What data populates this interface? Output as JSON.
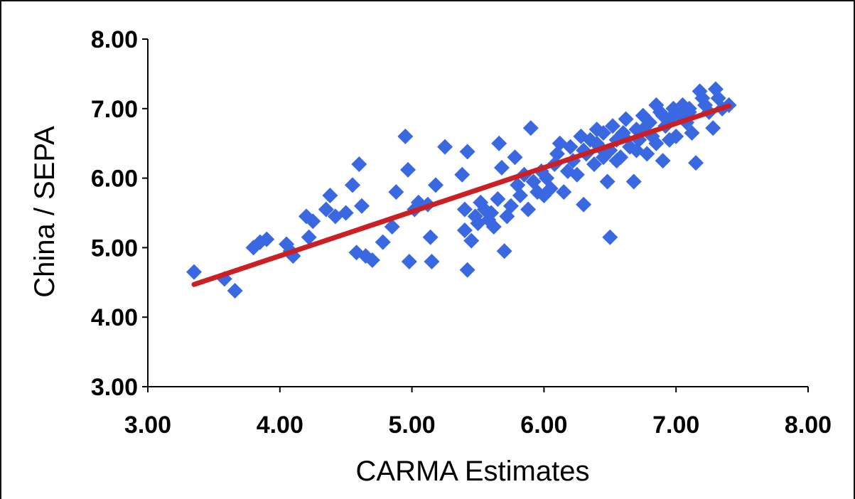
{
  "chart_data": {
    "type": "scatter",
    "title": "",
    "xlabel": "CARMA Estimates",
    "ylabel": "China / SEPA",
    "xlim": [
      3.0,
      8.0
    ],
    "ylim": [
      3.0,
      8.0
    ],
    "x_ticks": [
      "3.00",
      "4.00",
      "5.00",
      "6.00",
      "7.00",
      "8.00"
    ],
    "y_ticks": [
      "3.00",
      "4.00",
      "5.00",
      "6.00",
      "7.00",
      "8.00"
    ],
    "grid": false,
    "legend": "none",
    "colors": {
      "points": "#3a68e0",
      "trendline": "#cc1f24",
      "axis": "#000000"
    },
    "series": [
      {
        "type": "scatter",
        "points": [
          [
            3.35,
            4.65
          ],
          [
            3.58,
            4.55
          ],
          [
            3.66,
            4.38
          ],
          [
            3.8,
            5.0
          ],
          [
            3.85,
            5.08
          ],
          [
            3.9,
            5.12
          ],
          [
            4.05,
            5.05
          ],
          [
            4.08,
            4.95
          ],
          [
            4.1,
            4.88
          ],
          [
            4.2,
            5.45
          ],
          [
            4.22,
            5.15
          ],
          [
            4.25,
            5.38
          ],
          [
            4.35,
            5.55
          ],
          [
            4.38,
            5.75
          ],
          [
            4.42,
            5.45
          ],
          [
            4.5,
            5.5
          ],
          [
            4.55,
            5.9
          ],
          [
            4.58,
            4.93
          ],
          [
            4.6,
            6.2
          ],
          [
            4.62,
            5.6
          ],
          [
            4.65,
            4.88
          ],
          [
            4.7,
            4.82
          ],
          [
            4.78,
            5.08
          ],
          [
            4.85,
            5.3
          ],
          [
            4.88,
            5.8
          ],
          [
            4.95,
            6.6
          ],
          [
            4.97,
            6.12
          ],
          [
            4.98,
            4.8
          ],
          [
            5.02,
            5.55
          ],
          [
            5.05,
            5.65
          ],
          [
            5.12,
            5.62
          ],
          [
            5.14,
            5.15
          ],
          [
            5.15,
            4.8
          ],
          [
            5.18,
            5.9
          ],
          [
            5.25,
            6.45
          ],
          [
            5.38,
            6.05
          ],
          [
            5.4,
            5.55
          ],
          [
            5.4,
            5.25
          ],
          [
            5.42,
            4.68
          ],
          [
            5.42,
            6.38
          ],
          [
            5.45,
            5.1
          ],
          [
            5.48,
            5.45
          ],
          [
            5.5,
            5.35
          ],
          [
            5.52,
            5.65
          ],
          [
            5.55,
            5.55
          ],
          [
            5.58,
            5.4
          ],
          [
            5.6,
            5.5
          ],
          [
            5.62,
            5.3
          ],
          [
            5.65,
            5.7
          ],
          [
            5.66,
            6.5
          ],
          [
            5.68,
            6.15
          ],
          [
            5.7,
            4.95
          ],
          [
            5.72,
            5.45
          ],
          [
            5.75,
            5.6
          ],
          [
            5.78,
            6.3
          ],
          [
            5.8,
            5.9
          ],
          [
            5.82,
            5.75
          ],
          [
            5.85,
            6.05
          ],
          [
            5.88,
            5.55
          ],
          [
            5.9,
            6.72
          ],
          [
            5.92,
            5.95
          ],
          [
            5.95,
            5.8
          ],
          [
            5.98,
            6.1
          ],
          [
            6.0,
            5.75
          ],
          [
            6.02,
            6.0
          ],
          [
            6.05,
            5.85
          ],
          [
            6.08,
            6.2
          ],
          [
            6.1,
            6.35
          ],
          [
            6.12,
            6.5
          ],
          [
            6.15,
            5.8
          ],
          [
            6.18,
            6.1
          ],
          [
            6.2,
            6.45
          ],
          [
            6.22,
            6.25
          ],
          [
            6.25,
            6.05
          ],
          [
            6.28,
            6.6
          ],
          [
            6.3,
            5.62
          ],
          [
            6.32,
            6.35
          ],
          [
            6.35,
            6.55
          ],
          [
            6.38,
            6.2
          ],
          [
            6.4,
            6.7
          ],
          [
            6.42,
            6.45
          ],
          [
            6.45,
            6.65
          ],
          [
            6.48,
            5.95
          ],
          [
            6.5,
            5.15
          ],
          [
            6.5,
            6.4
          ],
          [
            6.52,
            6.75
          ],
          [
            6.55,
            6.55
          ],
          [
            6.58,
            6.3
          ],
          [
            6.6,
            6.65
          ],
          [
            6.62,
            6.85
          ],
          [
            6.65,
            6.45
          ],
          [
            6.68,
            5.95
          ],
          [
            6.7,
            6.7
          ],
          [
            6.72,
            6.55
          ],
          [
            6.75,
            6.9
          ],
          [
            6.78,
            6.35
          ],
          [
            6.8,
            6.8
          ],
          [
            6.82,
            6.6
          ],
          [
            6.85,
            7.05
          ],
          [
            6.88,
            6.95
          ],
          [
            6.9,
            6.25
          ],
          [
            6.92,
            6.75
          ],
          [
            6.95,
            6.85
          ],
          [
            6.98,
            7.0
          ],
          [
            7.0,
            6.6
          ],
          [
            7.02,
            6.9
          ],
          [
            7.05,
            7.05
          ],
          [
            7.08,
            6.8
          ],
          [
            7.1,
            6.95
          ],
          [
            7.12,
            6.65
          ],
          [
            7.15,
            6.22
          ],
          [
            7.18,
            7.25
          ],
          [
            7.2,
            7.15
          ],
          [
            7.22,
            7.05
          ],
          [
            7.25,
            6.95
          ],
          [
            7.28,
            6.72
          ],
          [
            7.3,
            7.28
          ],
          [
            7.32,
            7.15
          ],
          [
            7.35,
            7.0
          ],
          [
            7.4,
            7.05
          ],
          [
            6.4,
            6.5
          ],
          [
            6.6,
            6.6
          ],
          [
            6.75,
            6.7
          ],
          [
            6.9,
            6.9
          ],
          [
            7.0,
            6.95
          ],
          [
            6.85,
            6.5
          ],
          [
            6.55,
            6.25
          ],
          [
            6.7,
            6.4
          ],
          [
            6.95,
            6.55
          ],
          [
            7.1,
            7.0
          ],
          [
            6.3,
            6.4
          ],
          [
            6.45,
            6.3
          ]
        ]
      },
      {
        "type": "line",
        "x": [
          3.35,
          7.4
        ],
        "y": [
          4.47,
          7.04
        ]
      }
    ]
  }
}
